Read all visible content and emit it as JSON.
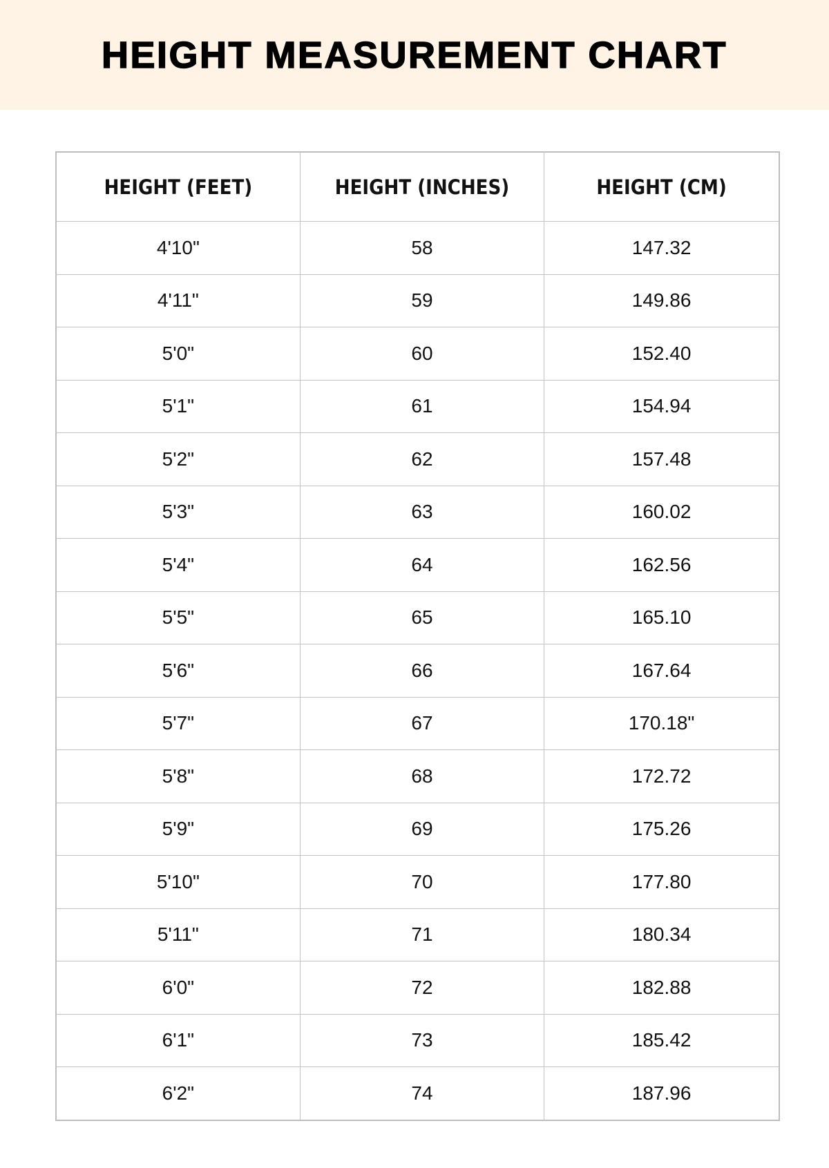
{
  "title": "HEIGHT MEASUREMENT CHART",
  "colors": {
    "banner_background": "#fff3e6",
    "border": "#c2c2c2"
  },
  "table": {
    "headers": [
      "HEIGHT (FEET)",
      "HEIGHT (INCHES)",
      "HEIGHT (CM)"
    ],
    "rows": [
      [
        "4'10\"",
        "58",
        "147.32"
      ],
      [
        "4'11\"",
        "59",
        "149.86"
      ],
      [
        "5'0\"",
        "60",
        "152.40"
      ],
      [
        "5'1\"",
        "61",
        "154.94"
      ],
      [
        "5'2\"",
        "62",
        "157.48"
      ],
      [
        "5'3\"",
        "63",
        "160.02"
      ],
      [
        "5'4\"",
        "64",
        "162.56"
      ],
      [
        "5'5\"",
        "65",
        "165.10"
      ],
      [
        "5'6\"",
        "66",
        "167.64"
      ],
      [
        "5'7\"",
        "67",
        "170.18\""
      ],
      [
        "5'8\"",
        "68",
        "172.72"
      ],
      [
        "5'9\"",
        "69",
        "175.26"
      ],
      [
        "5'10\"",
        "70",
        "177.80"
      ],
      [
        "5'11\"",
        "71",
        "180.34"
      ],
      [
        "6'0\"",
        "72",
        "182.88"
      ],
      [
        "6'1\"",
        "73",
        "185.42"
      ],
      [
        "6'2\"",
        "74",
        "187.96"
      ]
    ]
  }
}
